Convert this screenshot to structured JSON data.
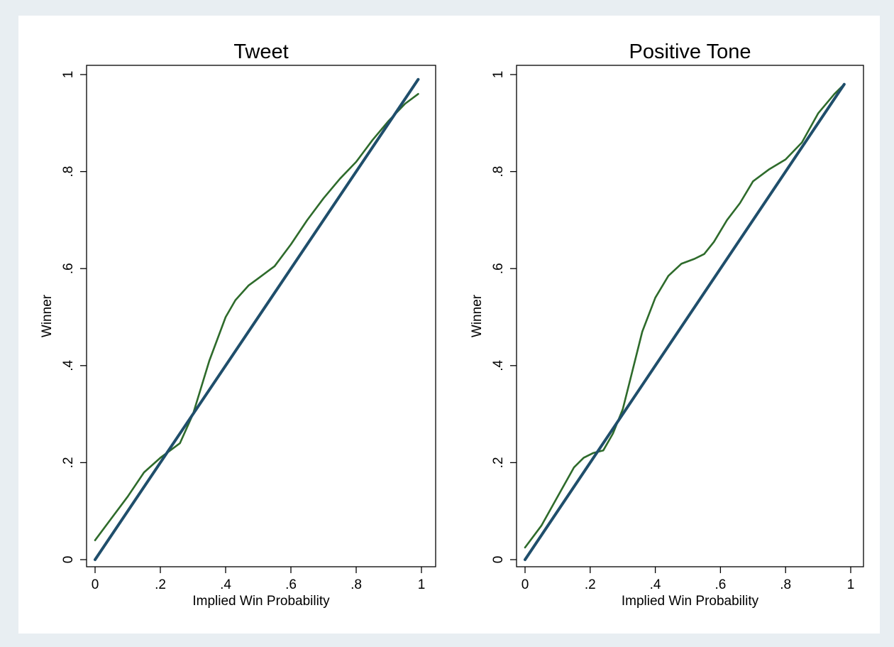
{
  "chart_data": [
    {
      "type": "line",
      "title": "Tweet",
      "xlabel": "Implied Win Probability",
      "ylabel": "Winner",
      "xlim": [
        0,
        1
      ],
      "ylim": [
        0,
        1
      ],
      "xticks": [
        0,
        0.2,
        0.4,
        0.6,
        0.8,
        1
      ],
      "xtick_labels": [
        "0",
        ".2",
        ".4",
        ".6",
        ".8",
        "1"
      ],
      "yticks": [
        0,
        0.2,
        0.4,
        0.6,
        0.8,
        1
      ],
      "ytick_labels": [
        "0",
        ".2",
        ".4",
        ".6",
        ".8",
        "1"
      ],
      "grid": false,
      "series": [
        {
          "color": "#2e6b2b",
          "x": [
            0.0,
            0.05,
            0.1,
            0.15,
            0.2,
            0.23,
            0.26,
            0.3,
            0.35,
            0.4,
            0.43,
            0.47,
            0.5,
            0.55,
            0.6,
            0.65,
            0.7,
            0.75,
            0.8,
            0.85,
            0.9,
            0.95,
            0.99
          ],
          "y": [
            0.04,
            0.085,
            0.13,
            0.18,
            0.21,
            0.225,
            0.24,
            0.3,
            0.41,
            0.5,
            0.535,
            0.565,
            0.58,
            0.605,
            0.65,
            0.7,
            0.745,
            0.785,
            0.82,
            0.865,
            0.905,
            0.94,
            0.96
          ]
        },
        {
          "color": "#1f4e6b",
          "x": [
            0.0,
            0.99
          ],
          "y": [
            0.0,
            0.99
          ]
        }
      ]
    },
    {
      "type": "line",
      "title": "Positive Tone",
      "xlabel": "Implied Win Probability",
      "ylabel": "Winner",
      "xlim": [
        0,
        1
      ],
      "ylim": [
        0,
        1
      ],
      "xticks": [
        0,
        0.2,
        0.4,
        0.6,
        0.8,
        1
      ],
      "xtick_labels": [
        "0",
        ".2",
        ".4",
        ".6",
        ".8",
        "1"
      ],
      "yticks": [
        0,
        0.2,
        0.4,
        0.6,
        0.8,
        1
      ],
      "ytick_labels": [
        "0",
        ".2",
        ".4",
        ".6",
        ".8",
        "1"
      ],
      "grid": false,
      "series": [
        {
          "color": "#2e6b2b",
          "x": [
            0.0,
            0.05,
            0.1,
            0.15,
            0.18,
            0.21,
            0.24,
            0.27,
            0.3,
            0.33,
            0.36,
            0.4,
            0.44,
            0.48,
            0.52,
            0.55,
            0.58,
            0.62,
            0.66,
            0.7,
            0.75,
            0.8,
            0.85,
            0.9,
            0.95,
            0.98
          ],
          "y": [
            0.025,
            0.07,
            0.13,
            0.19,
            0.21,
            0.22,
            0.225,
            0.26,
            0.31,
            0.39,
            0.47,
            0.54,
            0.585,
            0.61,
            0.62,
            0.63,
            0.655,
            0.7,
            0.735,
            0.78,
            0.805,
            0.825,
            0.86,
            0.92,
            0.96,
            0.98
          ]
        },
        {
          "color": "#1f4e6b",
          "x": [
            0.0,
            0.98
          ],
          "y": [
            0.0,
            0.98
          ]
        }
      ]
    }
  ]
}
